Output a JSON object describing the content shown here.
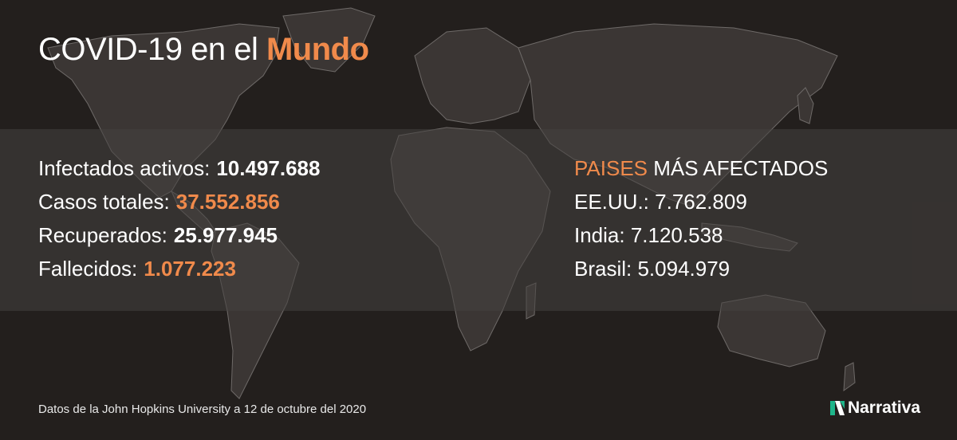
{
  "colors": {
    "background": "#231f1d",
    "accent": "#f08a4b",
    "text": "#ffffff",
    "land": "#3b3634",
    "borders": "#6e6a68",
    "logo_green": "#1fb58a"
  },
  "title": {
    "prefix": "COVID-19 en el ",
    "accent": "Mundo"
  },
  "stats": [
    {
      "label": "Infectados activos:",
      "value": "10.497.688",
      "highlight": false
    },
    {
      "label": "Casos totales:",
      "value": "37.552.856",
      "highlight": true
    },
    {
      "label": "Recuperados:",
      "value": "25.977.945",
      "highlight": false
    },
    {
      "label": "Fallecidos:",
      "value": "1.077.223",
      "highlight": true
    }
  ],
  "most_affected": {
    "heading_accent": "PAISES",
    "heading_rest": " MÁS AFECTADOS",
    "rows": [
      "EE.UU.: 7.762.809",
      "India: 7.120.538",
      "Brasil: 5.094.979"
    ]
  },
  "source": "Datos de la John Hopkins University a 12 de octubre del 2020",
  "brand": {
    "name": "Narrativa",
    "icon": "narrativa-logo-icon"
  }
}
